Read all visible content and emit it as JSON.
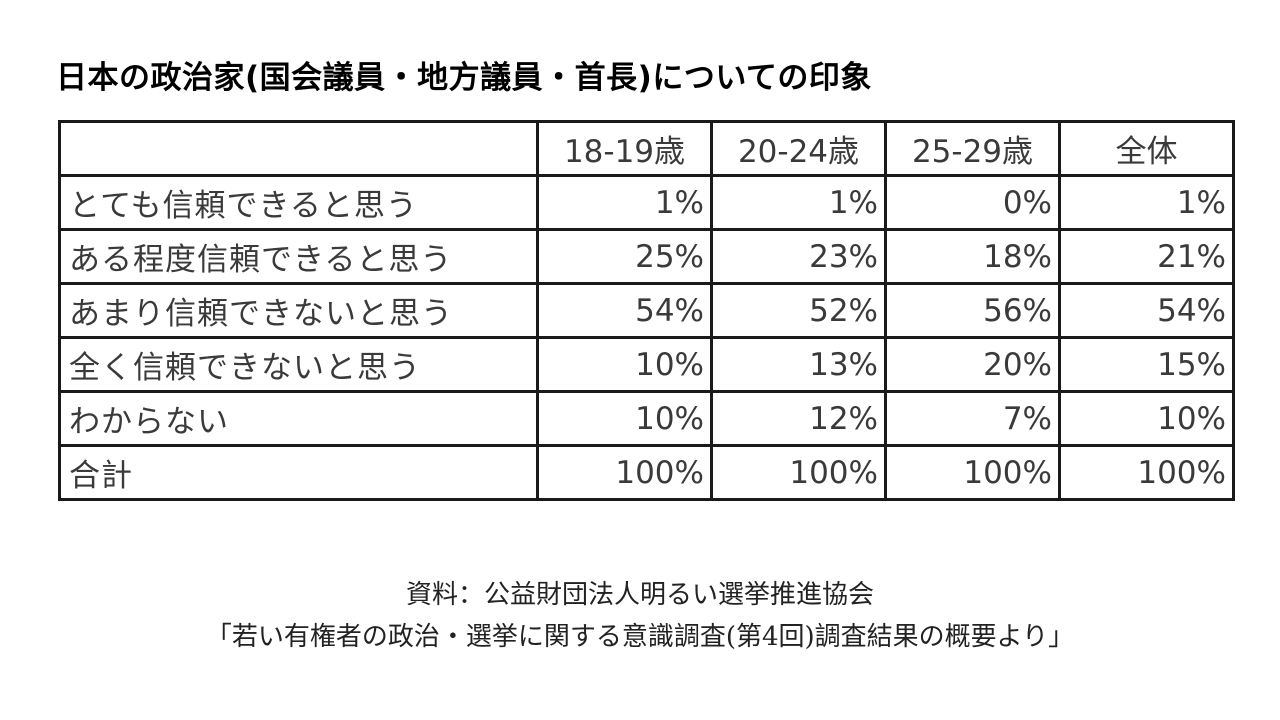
{
  "title": "日本の政治家(国会議員・地方議員・首長)についての印象",
  "chart_data": {
    "type": "table",
    "title": "日本の政治家(国会議員・地方議員・首長)についての印象",
    "columns": [
      "",
      "18-19歳",
      "20-24歳",
      "25-29歳",
      "全体"
    ],
    "rows": [
      {
        "label": "とても信頼できると思う",
        "values": [
          "1%",
          "1%",
          "0%",
          "1%"
        ]
      },
      {
        "label": "ある程度信頼できると思う",
        "values": [
          "25%",
          "23%",
          "18%",
          "21%"
        ]
      },
      {
        "label": "あまり信頼できないと思う",
        "values": [
          "54%",
          "52%",
          "56%",
          "54%"
        ]
      },
      {
        "label": "全く信頼できないと思う",
        "values": [
          "10%",
          "13%",
          "20%",
          "15%"
        ]
      },
      {
        "label": "わからない",
        "values": [
          "10%",
          "12%",
          "7%",
          "10%"
        ]
      },
      {
        "label": "合計",
        "values": [
          "100%",
          "100%",
          "100%",
          "100%"
        ]
      }
    ]
  },
  "source": {
    "line1": "資料：公益財団法人明るい選挙推進協会",
    "line2": "「若い有権者の政治・選挙に関する意識調査(第4回)調査結果の概要より」"
  }
}
